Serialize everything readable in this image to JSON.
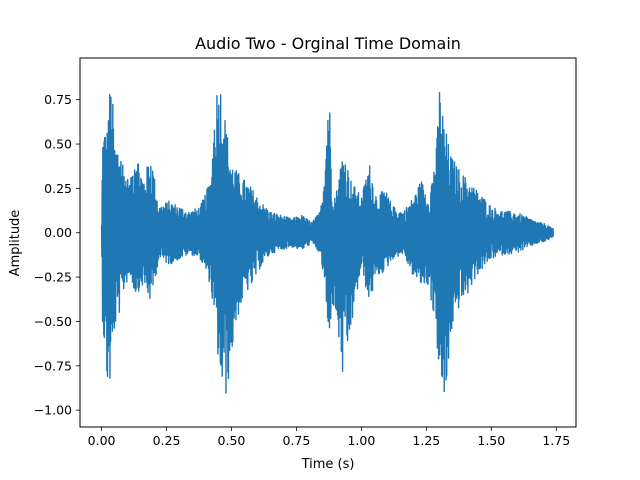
{
  "chart_data": {
    "type": "line",
    "title": "Audio Two - Orginal Time Domain",
    "xlabel": "Time (s)",
    "ylabel": "Amplitude",
    "xlim": [
      -0.083,
      1.826
    ],
    "ylim": [
      -1.095,
      0.985
    ],
    "x_ticks": [
      "0.00",
      "0.25",
      "0.50",
      "0.75",
      "1.00",
      "1.25",
      "1.50",
      "1.75"
    ],
    "x_tick_values": [
      0,
      0.25,
      0.5,
      0.75,
      1.0,
      1.25,
      1.5,
      1.75
    ],
    "y_ticks": [
      "−1.00",
      "−0.75",
      "−0.50",
      "−0.25",
      "0.00",
      "0.25",
      "0.50",
      "0.75"
    ],
    "y_tick_values": [
      -1.0,
      -0.75,
      -0.5,
      -0.25,
      0.0,
      0.25,
      0.5,
      0.75
    ],
    "grid": false,
    "legend": "none",
    "series": [
      {
        "color": "#1f77b4",
        "description": "dense audio waveform; envelope bursts listed below",
        "x": [
          0.0,
          0.004,
          0.012,
          0.02,
          0.03,
          0.04,
          0.05,
          0.07,
          0.09,
          0.11,
          0.13,
          0.16,
          0.19,
          0.22,
          0.26,
          0.3,
          0.34,
          0.38,
          0.42,
          0.44,
          0.46,
          0.48,
          0.5,
          0.52,
          0.55,
          0.58,
          0.61,
          0.65,
          0.69,
          0.73,
          0.77,
          0.81,
          0.84,
          0.86,
          0.875,
          0.885,
          0.9,
          0.93,
          0.96,
          1.0,
          1.03,
          1.06,
          1.09,
          1.12,
          1.16,
          1.2,
          1.23,
          1.26,
          1.29,
          1.3,
          1.32,
          1.33,
          1.34,
          1.36,
          1.38,
          1.41,
          1.44,
          1.47,
          1.5,
          1.53,
          1.56,
          1.59,
          1.62,
          1.65,
          1.68,
          1.71,
          1.74
        ],
        "upper": [
          0.05,
          0.55,
          0.6,
          0.55,
          0.8,
          0.84,
          0.5,
          0.5,
          0.35,
          0.28,
          0.5,
          0.3,
          0.45,
          0.15,
          0.18,
          0.15,
          0.12,
          0.15,
          0.3,
          0.82,
          0.84,
          0.6,
          0.4,
          0.35,
          0.3,
          0.25,
          0.18,
          0.12,
          0.1,
          0.08,
          0.1,
          0.06,
          0.12,
          0.4,
          0.89,
          0.35,
          0.2,
          0.48,
          0.3,
          0.2,
          0.4,
          0.2,
          0.25,
          0.15,
          0.12,
          0.2,
          0.3,
          0.2,
          0.5,
          0.84,
          0.6,
          0.55,
          0.45,
          0.4,
          0.35,
          0.3,
          0.25,
          0.2,
          0.15,
          0.13,
          0.12,
          0.12,
          0.1,
          0.08,
          0.06,
          0.05,
          0.02
        ],
        "lower": [
          -0.05,
          -0.55,
          -0.65,
          -0.85,
          -0.9,
          -0.75,
          -0.55,
          -0.45,
          -0.3,
          -0.25,
          -0.35,
          -0.3,
          -0.4,
          -0.15,
          -0.18,
          -0.15,
          -0.12,
          -0.15,
          -0.3,
          -0.6,
          -0.88,
          -0.93,
          -0.7,
          -0.5,
          -0.35,
          -0.3,
          -0.2,
          -0.12,
          -0.1,
          -0.08,
          -0.1,
          -0.06,
          -0.12,
          -0.3,
          -0.72,
          -0.4,
          -0.45,
          -0.85,
          -0.55,
          -0.2,
          -0.4,
          -0.25,
          -0.22,
          -0.15,
          -0.12,
          -0.25,
          -0.3,
          -0.3,
          -0.6,
          -0.87,
          -0.95,
          -0.99,
          -0.6,
          -0.5,
          -0.4,
          -0.35,
          -0.25,
          -0.2,
          -0.15,
          -0.13,
          -0.12,
          -0.12,
          -0.1,
          -0.08,
          -0.06,
          -0.05,
          -0.02
        ]
      }
    ]
  }
}
